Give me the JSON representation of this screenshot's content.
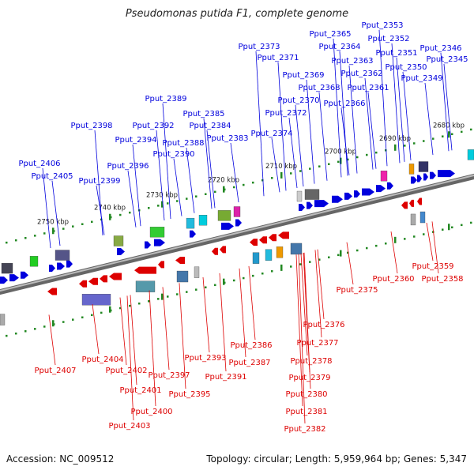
{
  "title": "Pseudomonas putida F1, complete genome",
  "footer": {
    "accession": "Accession: NC_009512",
    "summary": "Topology: circular; Length: 5,959,964 bp; Genes: 5,347"
  },
  "colors": {
    "forward": "#0000dd",
    "reverse": "#dd0000",
    "backbone": "#888888",
    "tick": "#228822"
  },
  "ticks": [
    "2680 kbp",
    "2690 kbp",
    "2700 kbp",
    "2710 kbp",
    "2720 kbp",
    "2730 kbp",
    "2740 kbp",
    "2750 kbp"
  ],
  "genes_forward": [
    "Pput_2345",
    "Pput_2346",
    "Pput_2349",
    "Pput_2350",
    "Pput_2351",
    "Pput_2352",
    "Pput_2353",
    "Pput_2361",
    "Pput_2362",
    "Pput_2363",
    "Pput_2364",
    "Pput_2365",
    "Pput_2366",
    "Pput_2368",
    "Pput_2369",
    "Pput_2370",
    "Pput_2371",
    "Pput_2372",
    "Pput_2373",
    "Pput_2374",
    "Pput_2383",
    "Pput_2384",
    "Pput_2385",
    "Pput_2388",
    "Pput_2389",
    "Pput_2390",
    "Pput_2392",
    "Pput_2394",
    "Pput_2396",
    "Pput_2398",
    "Pput_2399",
    "Pput_2405",
    "Pput_2406"
  ],
  "genes_reverse": [
    "Pput_2358",
    "Pput_2359",
    "Pput_2360",
    "Pput_2375",
    "Pput_2376",
    "Pput_2377",
    "Pput_2378",
    "Pput_2379",
    "Pput_2380",
    "Pput_2381",
    "Pput_2382",
    "Pput_2386",
    "Pput_2387",
    "Pput_2391",
    "Pput_2393",
    "Pput_2395",
    "Pput_2397",
    "Pput_2400",
    "Pput_2401",
    "Pput_2402",
    "Pput_2403",
    "Pput_2404",
    "Pput_2407"
  ]
}
